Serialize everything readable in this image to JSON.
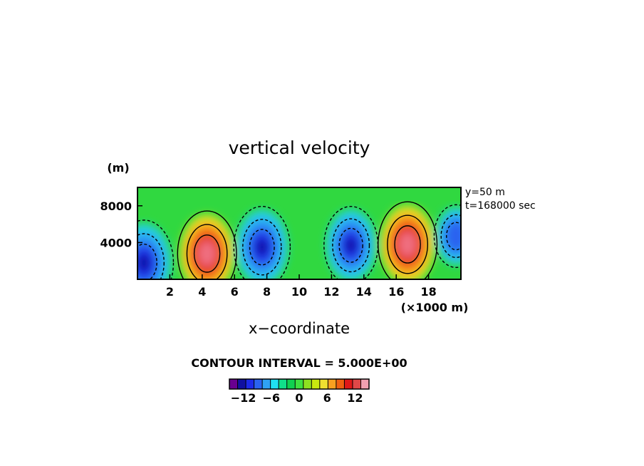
{
  "chart_data": {
    "type": "heatmap",
    "title": "vertical velocity",
    "xlabel": "x−coordinate",
    "x_unit": "(×1000 m)",
    "y_unit": "(m)",
    "xlim": [
      0,
      20
    ],
    "ylim": [
      0,
      10000
    ],
    "x_ticks": [
      2,
      4,
      6,
      8,
      10,
      12,
      14,
      16,
      18
    ],
    "x_tick_labels": [
      "2",
      "4",
      "6",
      "8",
      "10",
      "12",
      "14",
      "16",
      "18"
    ],
    "y_ticks": [
      4000,
      8000
    ],
    "y_tick_labels": [
      "4000",
      "8000"
    ],
    "annotations": [
      "y=50 m",
      "t=168000 sec"
    ],
    "contour_interval_text": "CONTOUR INTERVAL = 5.000E+00",
    "colorbar": {
      "tick_labels": [
        "−12",
        "−6",
        "0",
        "6",
        "12"
      ],
      "ticks": [
        -12,
        -6,
        0,
        6,
        12
      ],
      "colors": [
        "#6a0090",
        "#1010a0",
        "#1c2ae8",
        "#2a63f0",
        "#2fa2f4",
        "#20e0f0",
        "#10e08a",
        "#10d050",
        "#40e040",
        "#8ee020",
        "#c8e810",
        "#f0e030",
        "#f8a020",
        "#f06010",
        "#e01818",
        "#e04848",
        "#f0a0b0"
      ]
    },
    "features": [
      {
        "x": 0.4,
        "z": 1800,
        "w": -16
      },
      {
        "x": 4.3,
        "z": 2800,
        "w": 16
      },
      {
        "x": 7.7,
        "z": 3500,
        "w": -15
      },
      {
        "x": 13.2,
        "z": 3700,
        "w": -14
      },
      {
        "x": 16.7,
        "z": 3800,
        "w": 16
      },
      {
        "x": 19.7,
        "z": 4700,
        "w": -10
      }
    ]
  }
}
